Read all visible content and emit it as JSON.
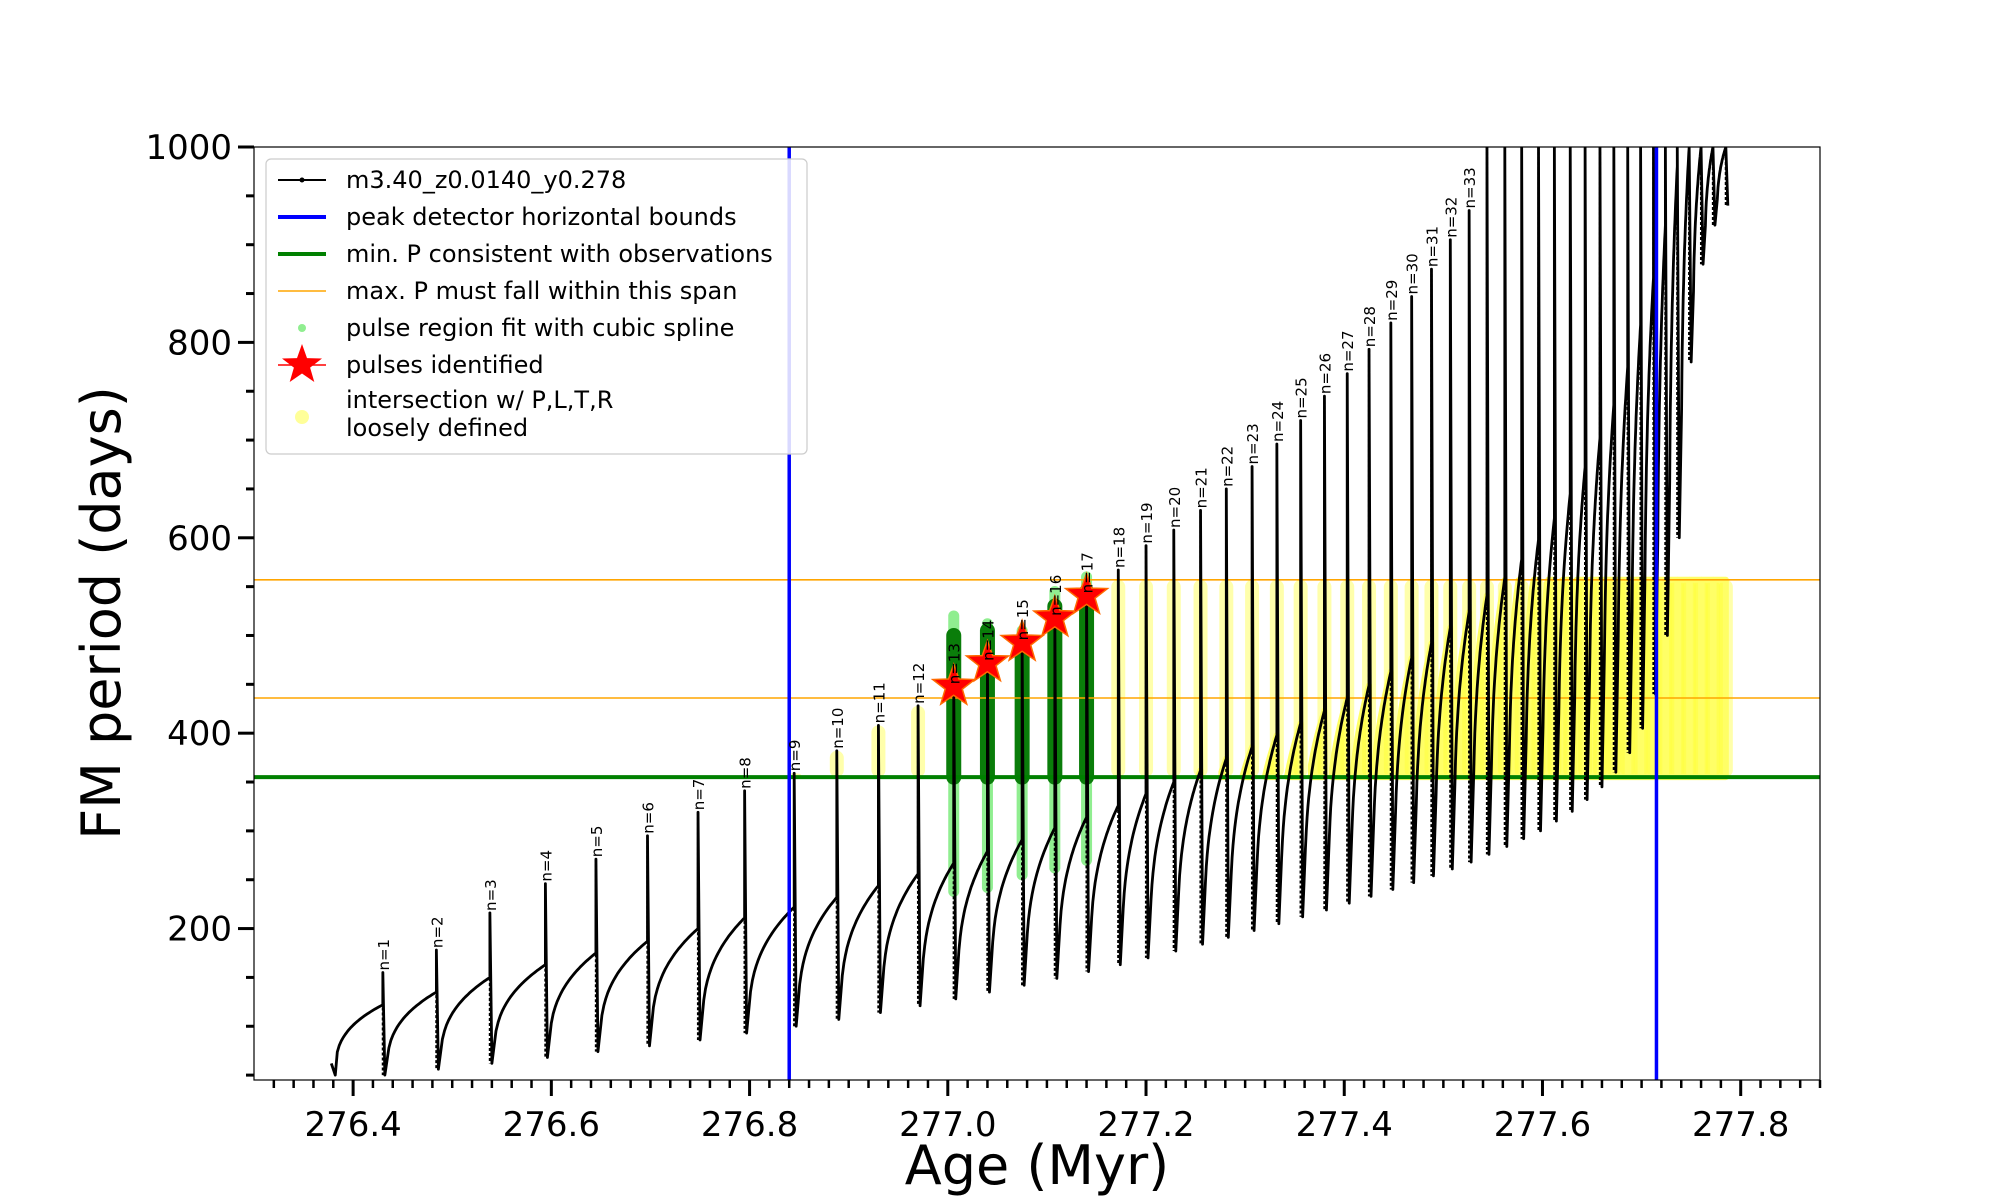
{
  "chart_data": {
    "type": "line",
    "xlabel": "Age (Myr)",
    "ylabel": "FM period (days)",
    "xlim": [
      276.3,
      277.88
    ],
    "ylim": [
      45,
      1000
    ],
    "xticks": [
      276.4,
      276.6,
      276.8,
      277.0,
      277.2,
      277.4,
      277.6,
      277.8
    ],
    "xtick_labels": [
      "276.4",
      "276.6",
      "276.8",
      "277.0",
      "277.2",
      "277.4",
      "277.6",
      "277.8"
    ],
    "yticks": [
      200,
      400,
      600,
      800,
      1000
    ],
    "ytick_labels": [
      "200",
      "400",
      "600",
      "800",
      "1000"
    ],
    "grid": false,
    "legend_placement": "upper-left",
    "legend": [
      {
        "label": "m3.40_z0.0140_y0.278",
        "color": "#000000",
        "marker": "line-dot"
      },
      {
        "label": "peak detector horizontal bounds",
        "color": "#0000ff",
        "marker": "line"
      },
      {
        "label": "min. P consistent with observations",
        "color": "#008000",
        "marker": "line"
      },
      {
        "label": "max. P must fall within this span",
        "color": "#ffa500",
        "marker": "thin-line"
      },
      {
        "label": "pulse region fit with cubic spline",
        "color": "#90ee90",
        "marker": "dot"
      },
      {
        "label": "pulses identified",
        "color": "#ff0000",
        "marker": "star"
      },
      {
        "label": "intersection w/ P,L,T,R",
        "label2": "loosely defined",
        "color": "#ffff99",
        "marker": "circle"
      }
    ],
    "vertical_lines": [
      {
        "x": 276.84,
        "color": "#0000ff",
        "role": "peak detector horizontal bounds"
      },
      {
        "x": 277.715,
        "color": "#0000ff",
        "role": "peak detector horizontal bounds"
      }
    ],
    "horizontal_lines": [
      {
        "y": 355,
        "color": "#008000",
        "role": "min. P consistent with observations"
      },
      {
        "y": 436,
        "color": "#ffa500",
        "role": "max. P span lower"
      },
      {
        "y": 557,
        "color": "#ffa500",
        "role": "max. P span upper"
      }
    ],
    "pulses": [
      {
        "n": 1,
        "age": 276.43,
        "peak": 155,
        "trough": 50,
        "pre": 122
      },
      {
        "n": 2,
        "age": 276.484,
        "peak": 178,
        "trough": 56,
        "pre": 135
      },
      {
        "n": 3,
        "age": 276.538,
        "peak": 216,
        "trough": 62,
        "pre": 150
      },
      {
        "n": 4,
        "age": 276.594,
        "peak": 246,
        "trough": 68,
        "pre": 163
      },
      {
        "n": 5,
        "age": 276.645,
        "peak": 271,
        "trough": 74,
        "pre": 175
      },
      {
        "n": 6,
        "age": 276.697,
        "peak": 295,
        "trough": 80,
        "pre": 187
      },
      {
        "n": 7,
        "age": 276.748,
        "peak": 319,
        "trough": 86,
        "pre": 200
      },
      {
        "n": 8,
        "age": 276.795,
        "peak": 341,
        "trough": 93,
        "pre": 211
      },
      {
        "n": 9,
        "age": 276.845,
        "peak": 359,
        "trough": 100,
        "pre": 222
      },
      {
        "n": 10,
        "age": 276.888,
        "peak": 382,
        "trough": 107,
        "pre": 232
      },
      {
        "n": 11,
        "age": 276.93,
        "peak": 408,
        "trough": 114,
        "pre": 244
      },
      {
        "n": 12,
        "age": 276.97,
        "peak": 428,
        "trough": 121,
        "pre": 256
      },
      {
        "n": 13,
        "age": 277.006,
        "peak": 448,
        "trough": 128,
        "pre": 267
      },
      {
        "n": 14,
        "age": 277.04,
        "peak": 472,
        "trough": 135,
        "pre": 279
      },
      {
        "n": 15,
        "age": 277.075,
        "peak": 493,
        "trough": 142,
        "pre": 291
      },
      {
        "n": 16,
        "age": 277.108,
        "peak": 518,
        "trough": 149,
        "pre": 303
      },
      {
        "n": 17,
        "age": 277.14,
        "peak": 541,
        "trough": 156,
        "pre": 314
      },
      {
        "n": 18,
        "age": 277.172,
        "peak": 567,
        "trough": 163,
        "pre": 326
      },
      {
        "n": 19,
        "age": 277.2,
        "peak": 592,
        "trough": 170,
        "pre": 338
      },
      {
        "n": 20,
        "age": 277.228,
        "peak": 608,
        "trough": 177,
        "pre": 350
      },
      {
        "n": 21,
        "age": 277.255,
        "peak": 628,
        "trough": 184,
        "pre": 362
      },
      {
        "n": 22,
        "age": 277.281,
        "peak": 650,
        "trough": 191,
        "pre": 374
      },
      {
        "n": 23,
        "age": 277.307,
        "peak": 673,
        "trough": 198,
        "pre": 386
      },
      {
        "n": 24,
        "age": 277.332,
        "peak": 696,
        "trough": 205,
        "pre": 398
      },
      {
        "n": 25,
        "age": 277.356,
        "peak": 720,
        "trough": 212,
        "pre": 410
      },
      {
        "n": 26,
        "age": 277.38,
        "peak": 745,
        "trough": 219,
        "pre": 423
      },
      {
        "n": 27,
        "age": 277.403,
        "peak": 768,
        "trough": 226,
        "pre": 436
      },
      {
        "n": 28,
        "age": 277.425,
        "peak": 793,
        "trough": 233,
        "pre": 449
      },
      {
        "n": 29,
        "age": 277.447,
        "peak": 820,
        "trough": 240,
        "pre": 463
      },
      {
        "n": 30,
        "age": 277.468,
        "peak": 847,
        "trough": 247,
        "pre": 477
      },
      {
        "n": 31,
        "age": 277.488,
        "peak": 875,
        "trough": 254,
        "pre": 492
      },
      {
        "n": 32,
        "age": 277.507,
        "peak": 905,
        "trough": 261,
        "pre": 508
      },
      {
        "n": 33,
        "age": 277.526,
        "peak": 935,
        "trough": 268,
        "pre": 524
      },
      {
        "n": 34,
        "age": 277.544,
        "peak": 1000,
        "trough": 276,
        "pre": 541
      },
      {
        "n": 35,
        "age": 277.562,
        "peak": 1000,
        "trough": 284,
        "pre": 559
      },
      {
        "n": 36,
        "age": 277.579,
        "peak": 1000,
        "trough": 292,
        "pre": 578
      },
      {
        "n": 37,
        "age": 277.596,
        "peak": 1000,
        "trough": 300,
        "pre": 598
      },
      {
        "n": 38,
        "age": 277.612,
        "peak": 1000,
        "trough": 310,
        "pre": 620
      },
      {
        "n": 39,
        "age": 277.628,
        "peak": 1000,
        "trough": 320,
        "pre": 645
      },
      {
        "n": 40,
        "age": 277.643,
        "peak": 1000,
        "trough": 332,
        "pre": 672
      },
      {
        "n": 41,
        "age": 277.658,
        "peak": 1000,
        "trough": 345,
        "pre": 702
      },
      {
        "n": 42,
        "age": 277.672,
        "peak": 1000,
        "trough": 360,
        "pre": 736
      },
      {
        "n": 43,
        "age": 277.686,
        "peak": 1000,
        "trough": 380,
        "pre": 775
      },
      {
        "n": 44,
        "age": 277.699,
        "peak": 1000,
        "trough": 405,
        "pre": 818
      },
      {
        "n": 45,
        "age": 277.712,
        "peak": 1000,
        "trough": 440,
        "pre": 866
      },
      {
        "n": 46,
        "age": 277.724,
        "peak": 1000,
        "trough": 500,
        "pre": 920
      },
      {
        "n": 47,
        "age": 277.736,
        "peak": 1000,
        "trough": 600,
        "pre": 980
      },
      {
        "n": 48,
        "age": 277.748,
        "peak": 1000,
        "trough": 780,
        "pre": 1000
      },
      {
        "n": 49,
        "age": 277.76,
        "peak": 1000,
        "trough": 880,
        "pre": 1000
      },
      {
        "n": 50,
        "age": 277.772,
        "peak": 1000,
        "trough": 920,
        "pre": 1000
      },
      {
        "n": 51,
        "age": 277.785,
        "peak": 1000,
        "trough": 940,
        "pre": 1000
      }
    ],
    "pulse_labels": [
      "n=1",
      "n=2",
      "n=3",
      "n=4",
      "n=5",
      "n=6",
      "n=7",
      "n=8",
      "n=9",
      "n=10",
      "n=11",
      "n=12",
      "n=13",
      "n=14",
      "n=15",
      "n=16",
      "n=17",
      "n=18",
      "n=19",
      "n=20",
      "n=21",
      "n=22",
      "n=23",
      "n=24",
      "n=25",
      "n=26",
      "n=27",
      "n=28",
      "n=29",
      "n=30",
      "n=31",
      "n=32",
      "n=33"
    ],
    "start_point": {
      "age": 276.378,
      "period": 50
    },
    "identified_pulses": [
      {
        "n": 13,
        "age": 277.006,
        "period": 448
      },
      {
        "n": 14,
        "age": 277.04,
        "period": 472
      },
      {
        "n": 15,
        "age": 277.075,
        "period": 493
      },
      {
        "n": 16,
        "age": 277.108,
        "period": 518
      },
      {
        "n": 17,
        "age": 277.14,
        "period": 541
      }
    ],
    "spline_fit_regions": [
      {
        "age": 277.006,
        "ymin": 238,
        "ymax": 520
      },
      {
        "age": 277.04,
        "ymin": 242,
        "ymax": 512
      },
      {
        "age": 277.075,
        "ymin": 255,
        "ymax": 505
      },
      {
        "age": 277.108,
        "ymin": 262,
        "ymax": 545
      },
      {
        "age": 277.14,
        "ymin": 270,
        "ymax": 560
      }
    ],
    "green_regions": [
      {
        "age": 277.006,
        "ymin": 355,
        "ymax": 500
      },
      {
        "age": 277.04,
        "ymin": 355,
        "ymax": 505
      },
      {
        "age": 277.075,
        "ymin": 355,
        "ymax": 490
      },
      {
        "age": 277.108,
        "ymin": 355,
        "ymax": 530
      },
      {
        "age": 277.14,
        "ymin": 355,
        "ymax": 545
      }
    ]
  }
}
